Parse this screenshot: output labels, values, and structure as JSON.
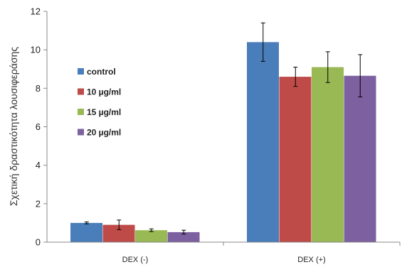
{
  "chart_data": {
    "type": "bar",
    "categories": [
      "DEX (-)",
      "DEX (+)"
    ],
    "ylabel": "Σχετική δραστικότητα λουσιφεράσης",
    "xlabel": "",
    "ylim": [
      0,
      12
    ],
    "yticks": [
      0,
      2,
      4,
      6,
      8,
      10,
      12
    ],
    "grid": false,
    "legend_position": "left-center",
    "series": [
      {
        "name": "control",
        "color": "#4a7ebb",
        "values": [
          1.0,
          10.4
        ],
        "errors": [
          0.05,
          1.0
        ]
      },
      {
        "name": "10 µg/ml",
        "color": "#be4b48",
        "values": [
          0.9,
          8.6
        ],
        "errors": [
          0.25,
          0.5
        ]
      },
      {
        "name": "15 µg/ml",
        "color": "#98b954",
        "values": [
          0.62,
          9.1
        ],
        "errors": [
          0.07,
          0.8
        ]
      },
      {
        "name": "20 µg/ml",
        "color": "#7d60a0",
        "values": [
          0.52,
          8.65
        ],
        "errors": [
          0.1,
          1.1
        ]
      }
    ]
  }
}
